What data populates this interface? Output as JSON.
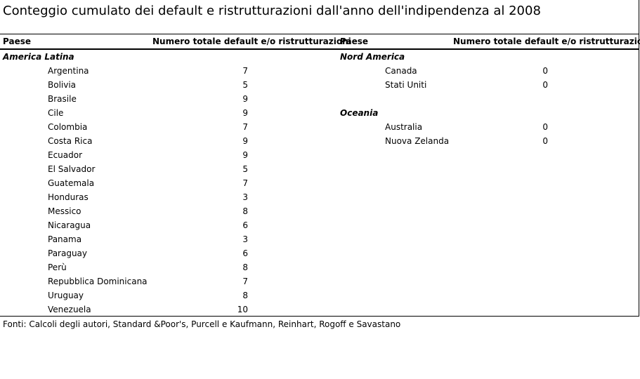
{
  "title": "Conteggio cumulato dei default e ristrutturazioni dall'anno dell'indipendenza al 2008",
  "left": {
    "col_country": "Paese",
    "col_value": "Numero totale default e/o ristrutturazioni",
    "region": "America Latina",
    "rows": [
      {
        "country": "Argentina",
        "value": "7"
      },
      {
        "country": "Bolivia",
        "value": "5"
      },
      {
        "country": "Brasile",
        "value": "9"
      },
      {
        "country": "Cile",
        "value": "9"
      },
      {
        "country": "Colombia",
        "value": "7"
      },
      {
        "country": "Costa Rica",
        "value": "9"
      },
      {
        "country": "Ecuador",
        "value": "9"
      },
      {
        "country": "El Salvador",
        "value": "5"
      },
      {
        "country": "Guatemala",
        "value": "7"
      },
      {
        "country": "Honduras",
        "value": "3"
      },
      {
        "country": "Messico",
        "value": "8"
      },
      {
        "country": "Nicaragua",
        "value": "6"
      },
      {
        "country": "Panama",
        "value": "3"
      },
      {
        "country": "Paraguay",
        "value": "6"
      },
      {
        "country": "Perù",
        "value": "8"
      },
      {
        "country": "Repubblica Dominicana",
        "value": "7"
      },
      {
        "country": "Uruguay",
        "value": "8"
      },
      {
        "country": "Venezuela",
        "value": "10"
      }
    ]
  },
  "right": {
    "col_country": "Paese",
    "col_value": "Numero totale default e/o ristrutturazioni",
    "groups": [
      {
        "region": "Nord America",
        "rows": [
          {
            "country": "Canada",
            "value": "0"
          },
          {
            "country": "Stati Uniti",
            "value": "0"
          }
        ]
      },
      {
        "region": "Oceania",
        "rows": [
          {
            "country": "Australia",
            "value": "0"
          },
          {
            "country": "Nuova Zelanda",
            "value": "0"
          }
        ]
      }
    ]
  },
  "source": "Fonti: Calcoli degli autori, Standard &Poor's, Purcell e Kaufmann, Reinhart, Rogoff e Savastano"
}
